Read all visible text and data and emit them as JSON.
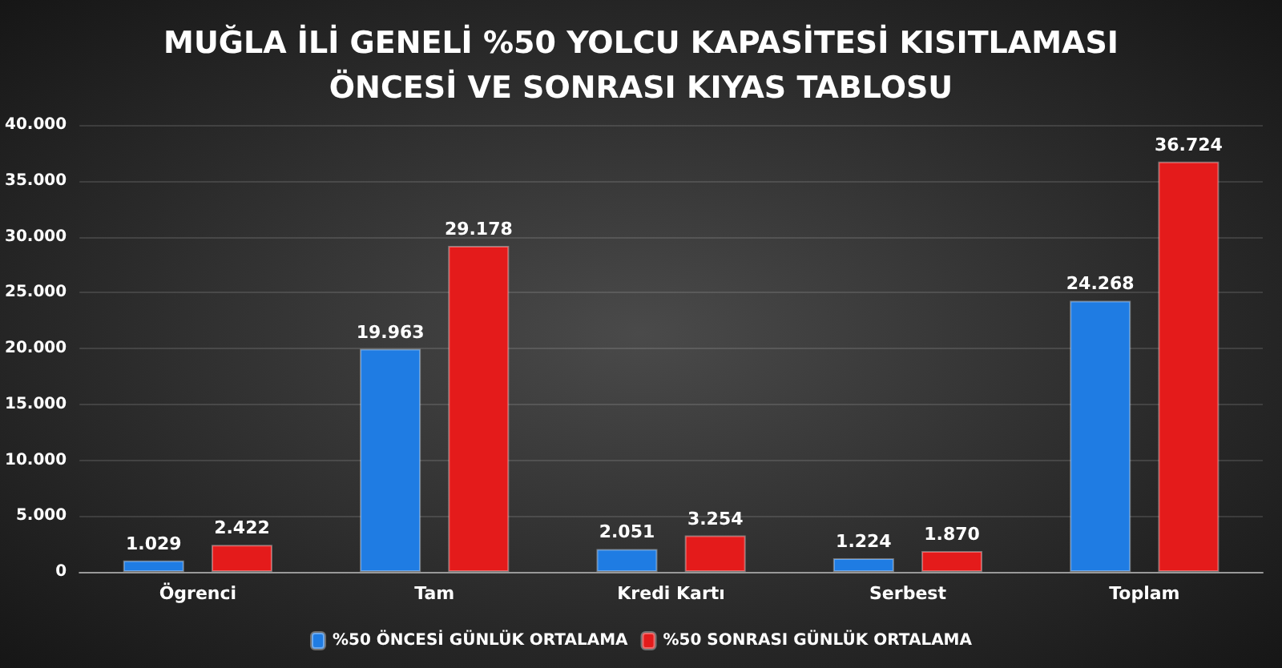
{
  "chart_data": {
    "type": "bar",
    "title": "MUĞLA İLİ GENELİ %50 YOLCU KAPASİTESİ KISITLAMASI\nÖNCESİ VE SONRASI KIYAS TABLOSU",
    "categories": [
      "Ögrenci",
      "Tam",
      "Kredi Kartı",
      "Serbest",
      "Toplam"
    ],
    "series": [
      {
        "name": "%50 ÖNCESİ GÜNLÜK ORTALAMA",
        "color": "#1f7ce3",
        "values": [
          1029,
          19963,
          2051,
          1224,
          24268
        ],
        "value_labels": [
          "1.029",
          "19.963",
          "2.051",
          "1.224",
          "24.268"
        ]
      },
      {
        "name": "%50 SONRASI GÜNLÜK ORTALAMA",
        "color": "#e41b1b",
        "values": [
          2422,
          29178,
          3254,
          1870,
          36724
        ],
        "value_labels": [
          "2.422",
          "29.178",
          "3.254",
          "1.870",
          "36.724"
        ]
      }
    ],
    "ylim": [
      0,
      40000
    ],
    "yticks": [
      0,
      {
        "value": 5000,
        "label": "5.000"
      },
      {
        "value": 10000,
        "label": "10.000"
      },
      {
        "value": 15000,
        "label": "15.000"
      },
      {
        "value": 20000,
        "label": "20.000"
      },
      {
        "value": 25000,
        "label": "25.000"
      },
      {
        "value": 30000,
        "label": "30.000"
      },
      {
        "value": 35000,
        "label": "35.000"
      },
      {
        "value": 40000,
        "label": "40.000"
      }
    ],
    "grid": "y",
    "legend": "bottom"
  }
}
